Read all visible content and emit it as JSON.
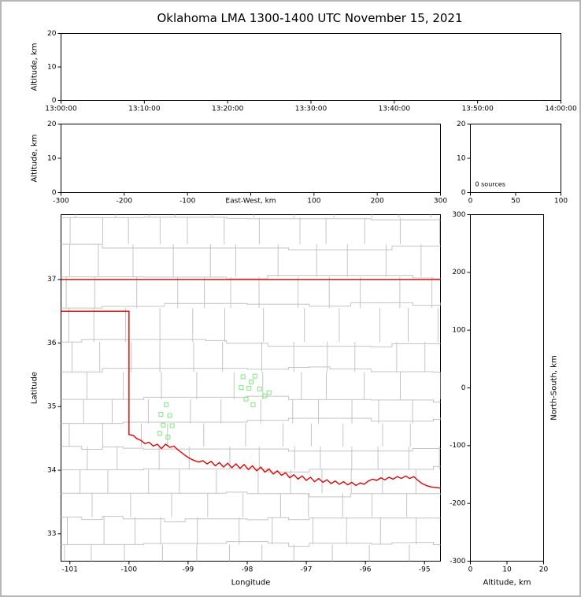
{
  "chart_data": {
    "type": "scatter",
    "title": "Oklahoma LMA 1300-1400 UTC November 15, 2021",
    "layout_hint": "xlma-style multi-panel: time-height strip, east-west-height strip, altitude histogram, plan-view map, north-south-height strip",
    "grid": false,
    "panels": {
      "time_height": {
        "xtick_labels": [
          "13:00:00",
          "13:10:00",
          "13:20:00",
          "13:30:00",
          "13:40:00",
          "13:50:00",
          "14:00:00"
        ],
        "ylabel": "Altitude, km",
        "ylim": [
          0,
          20
        ],
        "yticks": [
          0,
          10,
          20
        ],
        "points": []
      },
      "ew_height": {
        "xlabel": "East-West, km",
        "xlim": [
          -300,
          300
        ],
        "xticks": [
          -300,
          -200,
          -100,
          0,
          100,
          200,
          300
        ],
        "ylabel": "Altitude, km",
        "ylim": [
          0,
          20
        ],
        "yticks": [
          0,
          10,
          20
        ],
        "points": []
      },
      "histogram": {
        "xlim": [
          0,
          100
        ],
        "xticks": [
          0,
          50,
          100
        ],
        "ylim": [
          0,
          20
        ],
        "yticks": [
          0,
          10,
          20
        ],
        "annotation": "0 sources",
        "bars": []
      },
      "map": {
        "xlabel": "Longitude",
        "ylabel": "Latitude",
        "xlim": [
          -101.15,
          -94.73
        ],
        "ylim": [
          32.57,
          38.02
        ],
        "xticks": [
          -101,
          -100,
          -99,
          -98,
          -97,
          -96,
          -95
        ],
        "yticks": [
          33,
          34,
          35,
          36,
          37
        ]
      },
      "ns_height": {
        "xlabel": "Altitude, km",
        "ylabel": "North-South, km",
        "xlim": [
          0,
          20
        ],
        "xticks": [
          0,
          10,
          20
        ],
        "ylim": [
          -300,
          300
        ],
        "yticks": [
          -300,
          -200,
          -100,
          0,
          100,
          200,
          300
        ],
        "points": []
      }
    },
    "sources": {
      "marker": "open-square",
      "marker_size_px": 5,
      "color": "#7ee87e",
      "points": [
        [
          -98.07,
          35.47
        ],
        [
          -97.87,
          35.48
        ],
        [
          -98.1,
          35.3
        ],
        [
          -97.97,
          35.29
        ],
        [
          -97.79,
          35.28
        ],
        [
          -97.63,
          35.22
        ],
        [
          -98.02,
          35.12
        ],
        [
          -97.9,
          35.03
        ],
        [
          -97.7,
          35.17
        ],
        [
          -97.93,
          35.39
        ],
        [
          -99.37,
          35.03
        ],
        [
          -99.46,
          34.88
        ],
        [
          -99.31,
          34.86
        ],
        [
          -99.42,
          34.71
        ],
        [
          -99.27,
          34.7
        ],
        [
          -99.48,
          34.58
        ],
        [
          -99.34,
          34.52
        ]
      ]
    },
    "state_border": {
      "color": "#e60000",
      "lines": [
        [
          [
            -101.15,
            37.0
          ],
          [
            -94.73,
            37.0
          ]
        ],
        [
          [
            -101.15,
            36.5
          ],
          [
            -100.0,
            36.5
          ],
          [
            -100.0,
            34.56
          ],
          [
            -99.93,
            34.55
          ],
          [
            -99.87,
            34.5
          ],
          [
            -99.8,
            34.47
          ],
          [
            -99.73,
            34.42
          ],
          [
            -99.66,
            34.44
          ],
          [
            -99.59,
            34.38
          ],
          [
            -99.52,
            34.41
          ],
          [
            -99.45,
            34.34
          ],
          [
            -99.38,
            34.41
          ],
          [
            -99.31,
            34.36
          ],
          [
            -99.24,
            34.38
          ],
          [
            -99.17,
            34.32
          ],
          [
            -99.1,
            34.27
          ],
          [
            -99.03,
            34.22
          ],
          [
            -98.96,
            34.18
          ],
          [
            -98.89,
            34.15
          ],
          [
            -98.82,
            34.13
          ],
          [
            -98.75,
            34.15
          ],
          [
            -98.68,
            34.1
          ],
          [
            -98.61,
            34.14
          ],
          [
            -98.54,
            34.07
          ],
          [
            -98.47,
            34.12
          ],
          [
            -98.4,
            34.05
          ],
          [
            -98.33,
            34.11
          ],
          [
            -98.26,
            34.04
          ],
          [
            -98.19,
            34.1
          ],
          [
            -98.12,
            34.03
          ],
          [
            -98.05,
            34.09
          ],
          [
            -97.98,
            34.01
          ],
          [
            -97.91,
            34.07
          ],
          [
            -97.84,
            33.99
          ],
          [
            -97.77,
            34.05
          ],
          [
            -97.7,
            33.97
          ],
          [
            -97.63,
            34.02
          ],
          [
            -97.56,
            33.94
          ],
          [
            -97.49,
            33.99
          ],
          [
            -97.42,
            33.92
          ],
          [
            -97.35,
            33.96
          ],
          [
            -97.28,
            33.88
          ],
          [
            -97.21,
            33.93
          ],
          [
            -97.14,
            33.86
          ],
          [
            -97.07,
            33.91
          ],
          [
            -97.0,
            33.84
          ],
          [
            -96.93,
            33.89
          ],
          [
            -96.86,
            33.82
          ],
          [
            -96.79,
            33.87
          ],
          [
            -96.72,
            33.81
          ],
          [
            -96.65,
            33.85
          ],
          [
            -96.58,
            33.79
          ],
          [
            -96.51,
            33.83
          ],
          [
            -96.44,
            33.78
          ],
          [
            -96.37,
            33.82
          ],
          [
            -96.3,
            33.77
          ],
          [
            -96.23,
            33.81
          ],
          [
            -96.16,
            33.76
          ],
          [
            -96.09,
            33.8
          ],
          [
            -96.02,
            33.78
          ],
          [
            -95.95,
            33.83
          ],
          [
            -95.88,
            33.86
          ],
          [
            -95.81,
            33.84
          ],
          [
            -95.74,
            33.88
          ],
          [
            -95.67,
            33.85
          ],
          [
            -95.6,
            33.89
          ],
          [
            -95.53,
            33.86
          ],
          [
            -95.46,
            33.9
          ],
          [
            -95.39,
            33.87
          ],
          [
            -95.32,
            33.91
          ],
          [
            -95.25,
            33.87
          ],
          [
            -95.18,
            33.9
          ],
          [
            -95.11,
            33.84
          ],
          [
            -95.04,
            33.79
          ],
          [
            -94.97,
            33.76
          ],
          [
            -94.9,
            33.74
          ],
          [
            -94.83,
            33.73
          ],
          [
            -94.73,
            33.72
          ]
        ]
      ]
    },
    "counties": {
      "color": "#c4c4c4",
      "seed": 13
    }
  }
}
